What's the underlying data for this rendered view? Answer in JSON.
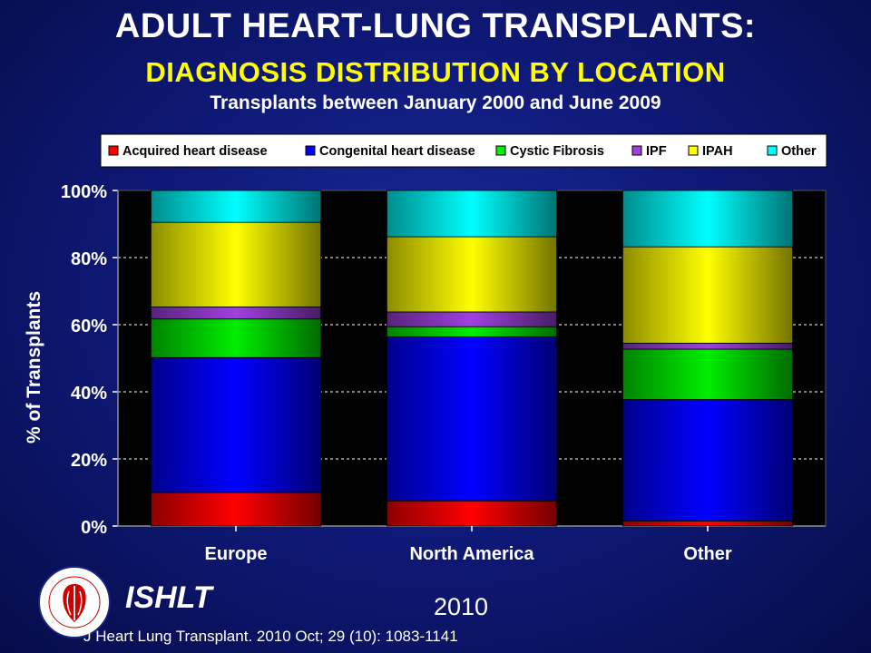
{
  "header": {
    "title": "ADULT HEART-LUNG TRANSPLANTS:",
    "subtitle": "DIAGNOSIS DISTRIBUTION BY LOCATION",
    "caption": "Transplants between January 2000 and June 2009"
  },
  "chart_data": {
    "type": "bar",
    "stacked": true,
    "categories": [
      "Europe",
      "North America",
      "Other"
    ],
    "series": [
      {
        "name": "Acquired heart disease",
        "color": "#ff0000",
        "values": [
          10,
          7.5,
          1.5
        ]
      },
      {
        "name": "Congenital heart disease",
        "color": "#0000ff",
        "values": [
          40.2,
          48.9,
          36.2
        ]
      },
      {
        "name": "Cystic Fibrosis",
        "color": "#00ee00",
        "values": [
          11.5,
          3,
          15
        ]
      },
      {
        "name": "IPF",
        "color": "#a040e0",
        "values": [
          3.6,
          4.4,
          1.8
        ]
      },
      {
        "name": "IPAH",
        "color": "#ffff00",
        "values": [
          25.2,
          22.4,
          28.7
        ]
      },
      {
        "name": "Other",
        "color": "#00ffff",
        "values": [
          9.5,
          13.8,
          16.8
        ]
      }
    ],
    "ylabel": "% of Transplants",
    "ylim": [
      0,
      100
    ],
    "yticks": [
      "0%",
      "20%",
      "40%",
      "60%",
      "80%",
      "100%"
    ],
    "grid": true,
    "legend": "top"
  },
  "footer": {
    "brand": "ISHLT",
    "year": "2010",
    "citation": "J Heart Lung Transplant. 2010 Oct; 29 (10): 1083-1141"
  }
}
